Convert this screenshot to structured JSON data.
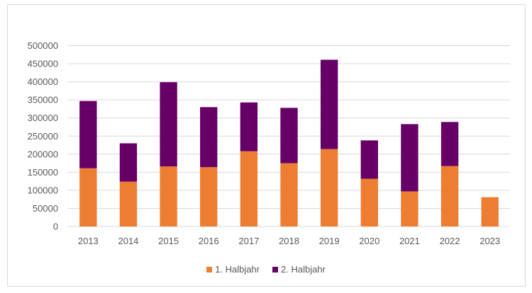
{
  "chart_data": {
    "type": "bar",
    "stacked": true,
    "title": "",
    "xlabel": "",
    "ylabel": "",
    "categories": [
      "2013",
      "2014",
      "2015",
      "2016",
      "2017",
      "2018",
      "2019",
      "2020",
      "2021",
      "2022",
      "2023"
    ],
    "series": [
      {
        "name": "1. Halbjahr",
        "color": "#ed7d31",
        "values": [
          161000,
          124000,
          166000,
          164000,
          208000,
          175000,
          214000,
          132000,
          97000,
          167000,
          81000
        ]
      },
      {
        "name": "2. Halbjahr",
        "color": "#660066",
        "values": [
          186000,
          106000,
          233000,
          166000,
          135000,
          153000,
          247000,
          106000,
          186000,
          122000,
          0
        ]
      }
    ],
    "ylim": [
      0,
      500000
    ],
    "yticks": [
      0,
      50000,
      100000,
      150000,
      200000,
      250000,
      300000,
      350000,
      400000,
      450000,
      500000
    ],
    "ytick_labels": [
      "0",
      "50000",
      "100000",
      "150000",
      "200000",
      "250000",
      "300000",
      "350000",
      "400000",
      "450000",
      "500000"
    ],
    "grid": true,
    "legend_position": "bottom"
  }
}
